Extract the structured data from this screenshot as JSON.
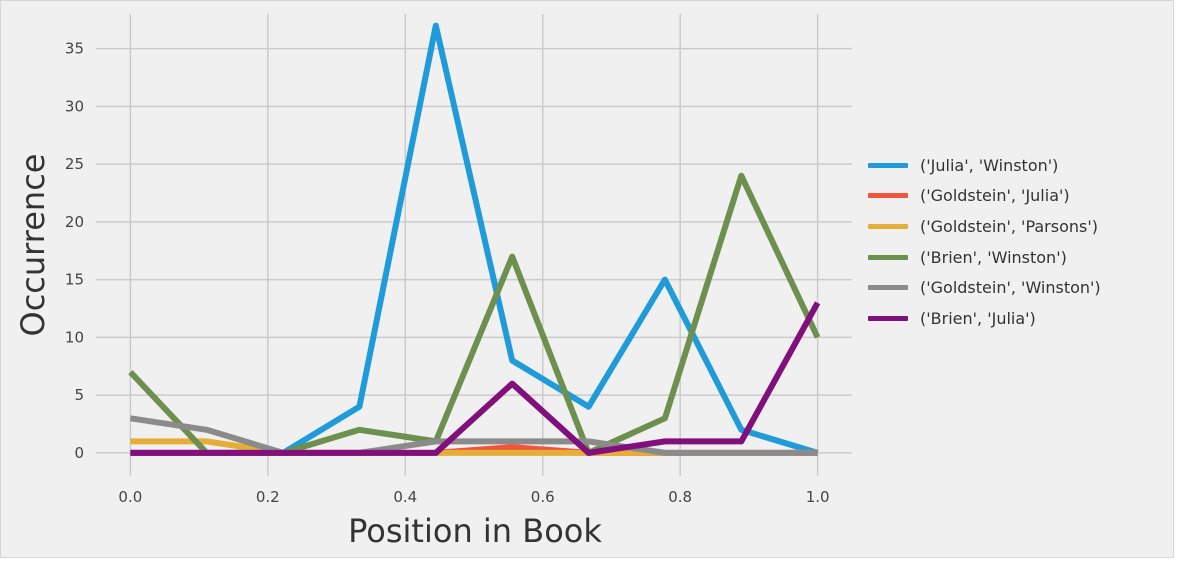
{
  "chart_data": {
    "type": "line",
    "xlabel": "Position in Book",
    "ylabel": "Occurrence",
    "xlim": [
      -0.05,
      1.05
    ],
    "ylim": [
      -2,
      38
    ],
    "xticks": [
      0.0,
      0.2,
      0.4,
      0.6,
      0.8,
      1.0
    ],
    "xtick_labels": [
      "0.0",
      "0.2",
      "0.4",
      "0.6",
      "0.8",
      "1.0"
    ],
    "yticks": [
      0,
      5,
      10,
      15,
      20,
      25,
      30,
      35
    ],
    "ytick_labels": [
      "0",
      "5",
      "10",
      "15",
      "20",
      "25",
      "30",
      "35"
    ],
    "grid": true,
    "legend_position": "right",
    "x": [
      0.0,
      0.1111,
      0.2222,
      0.3333,
      0.4444,
      0.5556,
      0.6667,
      0.7778,
      0.8889,
      1.0
    ],
    "series": [
      {
        "name": "('Julia', 'Winston')",
        "color": "#1f9bd9",
        "values": [
          0,
          0,
          0,
          4,
          37,
          8,
          4,
          15,
          2,
          0
        ]
      },
      {
        "name": "('Goldstein', 'Julia')",
        "color": "#f2553c",
        "values": [
          0,
          0,
          0,
          0,
          0,
          0.5,
          0,
          0,
          0,
          0
        ]
      },
      {
        "name": "('Goldstein', 'Parsons')",
        "color": "#e5ae38",
        "values": [
          1,
          1,
          0,
          0,
          0,
          0,
          0,
          0,
          0,
          0
        ]
      },
      {
        "name": "('Brien', 'Winston')",
        "color": "#6d904f",
        "values": [
          7,
          0,
          0,
          2,
          1,
          17,
          0,
          3,
          24,
          10
        ]
      },
      {
        "name": "('Goldstein', 'Winston')",
        "color": "#8b8b8b",
        "values": [
          3,
          2,
          0,
          0,
          1,
          1,
          1,
          0,
          0,
          0
        ]
      },
      {
        "name": "('Brien', 'Julia')",
        "color": "#810f7c",
        "values": [
          0,
          0,
          0,
          0,
          0,
          6,
          0,
          1,
          1,
          13
        ]
      }
    ]
  }
}
